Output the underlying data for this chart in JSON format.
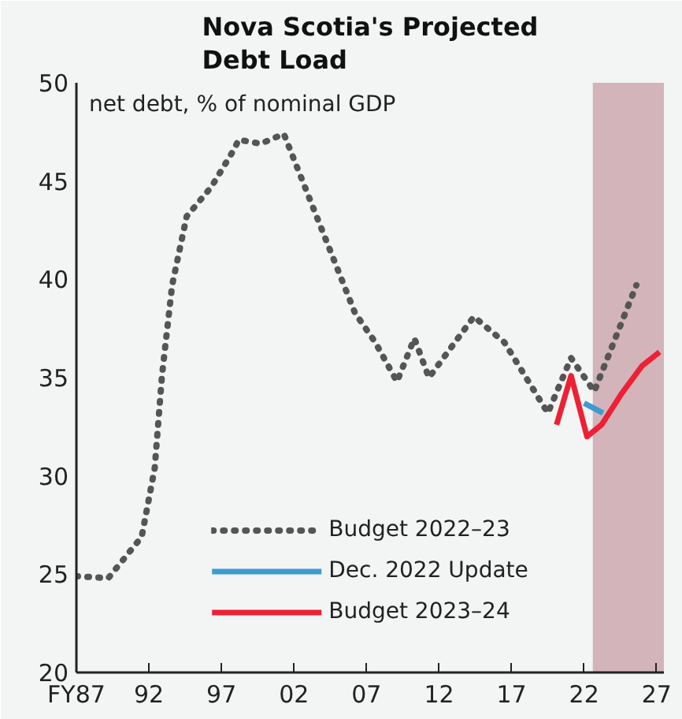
{
  "chart_data": {
    "type": "line",
    "title": "Nova Scotia's Projected\nDebt Load",
    "annotations": [
      "net debt, % of nominal GDP"
    ],
    "xlim": [
      1987,
      2027.5
    ],
    "xticks": [
      {
        "value": 1987,
        "label": "FY87"
      },
      {
        "value": 1992,
        "label": "92"
      },
      {
        "value": 1997,
        "label": "97"
      },
      {
        "value": 2002,
        "label": "02"
      },
      {
        "value": 2007,
        "label": "07"
      },
      {
        "value": 2012,
        "label": "12"
      },
      {
        "value": 2017,
        "label": "17"
      },
      {
        "value": 2022,
        "label": "22"
      },
      {
        "value": 2027,
        "label": "27"
      }
    ],
    "ylim": [
      20,
      50
    ],
    "yticks": [
      20,
      25,
      30,
      35,
      40,
      45,
      50
    ],
    "grid": false,
    "legend": "bottom",
    "bands": [
      {
        "axis": "x",
        "from": 2022.6,
        "to": 2027.5,
        "color": "#d2b4ba"
      }
    ],
    "series": [
      {
        "name": "Budget 2022–23",
        "color": "#555555",
        "line_style": "dotted",
        "x": [
          1987,
          1989.2,
          1991.5,
          1992.4,
          1992.9,
          1993.6,
          1994.6,
          1996.3,
          1997.7,
          1998.2,
          1999.7,
          2001.3,
          2003.4,
          2006.2,
          2007.6,
          2009.1,
          2010.3,
          2011.3,
          2014.4,
          2016.5,
          2019.5,
          2021.1,
          2022.7,
          2025.6
        ],
        "values": [
          24.9,
          24.8,
          26.9,
          30.4,
          35.1,
          39.7,
          43.2,
          44.7,
          46.4,
          47.1,
          46.9,
          47.4,
          43.5,
          38.3,
          36.8,
          34.8,
          37.0,
          35.0,
          38.1,
          36.8,
          33.2,
          36.0,
          34.3,
          39.7
        ]
      },
      {
        "name": "Dec. 2022 Update",
        "color": "#3d9bd1",
        "line_style": "solid",
        "x": [
          2022.0,
          2023.3
        ],
        "values": [
          33.7,
          33.2
        ]
      },
      {
        "name": "Budget 2023–24",
        "color": "#ee2034",
        "line_style": "solid",
        "x": [
          2020.1,
          2021.1,
          2022.2,
          2023.2,
          2024.6,
          2026.0,
          2027.2
        ],
        "values": [
          32.6,
          35.1,
          32.0,
          32.6,
          34.2,
          35.6,
          36.3
        ]
      }
    ]
  }
}
